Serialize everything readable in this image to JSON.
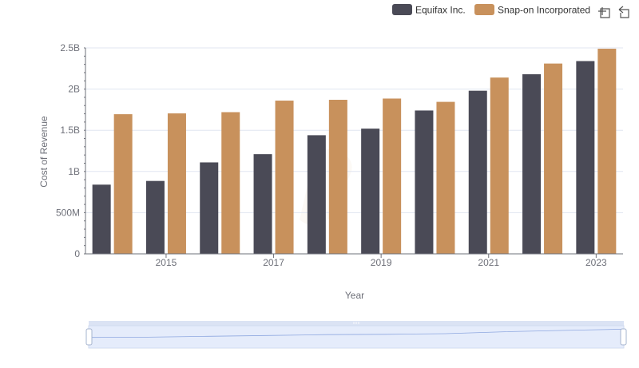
{
  "chart_data": {
    "type": "bar",
    "xlabel": "Year",
    "ylabel": "Cost of Revenue",
    "ylim": [
      0,
      2500000000
    ],
    "ytick_values": [
      0,
      500000000,
      1000000000,
      1500000000,
      2000000000,
      2500000000
    ],
    "ytick_labels": [
      "0",
      "500M",
      "1B",
      "1.5B",
      "2B",
      "2.5B"
    ],
    "categories": [
      2014,
      2015,
      2016,
      2017,
      2018,
      2019,
      2020,
      2021,
      2022,
      2023
    ],
    "xtick_labels": [
      {
        "year": 2015,
        "label": "2015"
      },
      {
        "year": 2017,
        "label": "2017"
      },
      {
        "year": 2019,
        "label": "2019"
      },
      {
        "year": 2021,
        "label": "2021"
      },
      {
        "year": 2023,
        "label": "2023"
      }
    ],
    "series": [
      {
        "name": "Equifax Inc.",
        "color": "#4a4a56",
        "values": [
          840000000,
          885000000,
          1110000000,
          1210000000,
          1440000000,
          1520000000,
          1740000000,
          1980000000,
          2180000000,
          2340000000
        ]
      },
      {
        "name": "Snap-on Incorporated",
        "color": "#c8915c",
        "values": [
          1695000000,
          1705000000,
          1720000000,
          1860000000,
          1870000000,
          1885000000,
          1845000000,
          2140000000,
          2310000000,
          2490000000
        ]
      }
    ],
    "legend_position": "top-right",
    "grid": true
  },
  "toolbar": {
    "zoom_icon": "zoom-select-icon",
    "reset_icon": "zoom-reset-icon"
  },
  "datazoom": {
    "range_start_percent": 0,
    "range_end_percent": 100
  }
}
